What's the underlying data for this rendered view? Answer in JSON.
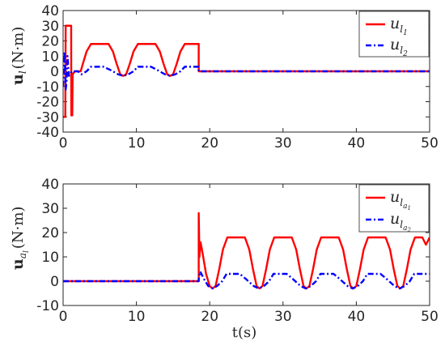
{
  "chart_data": [
    {
      "type": "line",
      "ylabel": {
        "symbol": "u",
        "sub": "l",
        "unit": "(N·m)"
      },
      "xlim": [
        0,
        50
      ],
      "ylim": [
        -40,
        40
      ],
      "xticks": [
        "0",
        "10",
        "20",
        "30",
        "40",
        "50"
      ],
      "yticks": [
        "-40",
        "-30",
        "-20",
        "-10",
        "0",
        "10",
        "20",
        "30",
        "40"
      ],
      "grid": false,
      "legend_placement": "top-right",
      "colors": {
        "series1": "#ff0000",
        "series2": "#0000ff"
      },
      "series": [
        {
          "name": "u_l1",
          "label": {
            "base": "u",
            "sub": "l",
            "subsub": "1"
          },
          "style": "solid",
          "points": [
            [
              0,
              -30
            ],
            [
              0.3,
              -30
            ],
            [
              0.35,
              30
            ],
            [
              1.1,
              30
            ],
            [
              1.12,
              -29
            ],
            [
              1.25,
              -29
            ],
            [
              1.3,
              -2
            ],
            [
              1.6,
              0
            ],
            [
              2.4,
              0
            ],
            [
              2.7,
              5
            ],
            [
              3.2,
              13
            ],
            [
              3.8,
              18
            ],
            [
              6.2,
              18
            ],
            [
              6.8,
              13
            ],
            [
              7.3,
              5
            ],
            [
              7.8,
              -2
            ],
            [
              8.2,
              -3
            ],
            [
              8.6,
              -2
            ],
            [
              9.1,
              5
            ],
            [
              9.6,
              13
            ],
            [
              10.2,
              18
            ],
            [
              12.6,
              18
            ],
            [
              13.2,
              13
            ],
            [
              13.7,
              5
            ],
            [
              14.2,
              -2
            ],
            [
              14.6,
              -3
            ],
            [
              15.0,
              -2
            ],
            [
              15.5,
              5
            ],
            [
              16.0,
              13
            ],
            [
              16.6,
              18
            ],
            [
              18.5,
              18
            ],
            [
              18.5,
              0
            ],
            [
              50,
              0
            ]
          ]
        },
        {
          "name": "u_l2",
          "label": {
            "base": "u",
            "sub": "l",
            "subsub": "2"
          },
          "style": "dashdot",
          "points": [
            [
              0,
              -10
            ],
            [
              0.2,
              13
            ],
            [
              0.35,
              -12
            ],
            [
              0.5,
              -5
            ],
            [
              0.6,
              10
            ],
            [
              0.8,
              -3
            ],
            [
              1.2,
              0
            ],
            [
              2.0,
              0
            ],
            [
              2.5,
              -2
            ],
            [
              3.2,
              0
            ],
            [
              3.8,
              3
            ],
            [
              5.5,
              3
            ],
            [
              6.4,
              1
            ],
            [
              7.5,
              -2
            ],
            [
              8.2,
              -3
            ],
            [
              8.9,
              -2
            ],
            [
              9.6,
              0
            ],
            [
              10.2,
              3
            ],
            [
              12.0,
              3
            ],
            [
              12.8,
              1
            ],
            [
              13.9,
              -2
            ],
            [
              14.6,
              -3
            ],
            [
              15.3,
              -2
            ],
            [
              16.0,
              0
            ],
            [
              16.6,
              3
            ],
            [
              18.0,
              3
            ],
            [
              18.5,
              3
            ],
            [
              18.5,
              0
            ],
            [
              50,
              0
            ]
          ]
        }
      ]
    },
    {
      "type": "line",
      "xlabel": "t(s)",
      "ylabel": {
        "symbol": "u",
        "sub": "a",
        "subsub": "l",
        "unit": "(N·m)"
      },
      "xlim": [
        0,
        50
      ],
      "ylim": [
        -10,
        40
      ],
      "xticks": [
        "0",
        "10",
        "20",
        "30",
        "40",
        "50"
      ],
      "yticks": [
        "-10",
        "0",
        "10",
        "20",
        "30",
        "40"
      ],
      "grid": false,
      "legend_placement": "top-right",
      "colors": {
        "series1": "#ff0000",
        "series2": "#0000ff"
      },
      "series": [
        {
          "name": "u_la1",
          "label": {
            "base": "u",
            "sub": "l",
            "subsub": "a",
            "subsubsub": "1"
          },
          "style": "solid",
          "points": [
            [
              0,
              0
            ],
            [
              18.5,
              0
            ],
            [
              18.5,
              28
            ],
            [
              18.6,
              10
            ],
            [
              18.75,
              16
            ],
            [
              19.0,
              12
            ],
            [
              19.5,
              3
            ],
            [
              20.0,
              -2
            ],
            [
              20.4,
              -3
            ],
            [
              20.8,
              -2
            ],
            [
              21.3,
              5
            ],
            [
              21.8,
              13
            ],
            [
              22.4,
              18
            ],
            [
              24.8,
              18
            ],
            [
              25.4,
              13
            ],
            [
              25.9,
              5
            ],
            [
              26.4,
              -2
            ],
            [
              26.8,
              -3
            ],
            [
              27.2,
              -2
            ],
            [
              27.7,
              5
            ],
            [
              28.2,
              13
            ],
            [
              28.8,
              18
            ],
            [
              31.2,
              18
            ],
            [
              31.8,
              13
            ],
            [
              32.3,
              5
            ],
            [
              32.8,
              -2
            ],
            [
              33.2,
              -3
            ],
            [
              33.6,
              -2
            ],
            [
              34.1,
              5
            ],
            [
              34.6,
              13
            ],
            [
              35.2,
              18
            ],
            [
              37.6,
              18
            ],
            [
              38.2,
              13
            ],
            [
              38.7,
              5
            ],
            [
              39.2,
              -2
            ],
            [
              39.6,
              -3
            ],
            [
              40.0,
              -2
            ],
            [
              40.5,
              5
            ],
            [
              41.0,
              13
            ],
            [
              41.6,
              18
            ],
            [
              44.0,
              18
            ],
            [
              44.6,
              13
            ],
            [
              45.1,
              5
            ],
            [
              45.6,
              -2
            ],
            [
              46.0,
              -3
            ],
            [
              46.4,
              -2
            ],
            [
              46.9,
              5
            ],
            [
              47.4,
              13
            ],
            [
              48.0,
              18
            ],
            [
              49.0,
              18
            ],
            [
              49.5,
              15
            ],
            [
              50,
              18
            ]
          ]
        },
        {
          "name": "u_la2",
          "label": {
            "base": "u",
            "sub": "l",
            "subsub": "a",
            "subsubsub": "2"
          },
          "style": "dashdot",
          "points": [
            [
              0,
              0
            ],
            [
              18.5,
              0
            ],
            [
              18.5,
              1
            ],
            [
              18.7,
              4
            ],
            [
              19.2,
              1
            ],
            [
              19.8,
              -2
            ],
            [
              20.4,
              -3
            ],
            [
              21.0,
              -2
            ],
            [
              21.7,
              0
            ],
            [
              22.3,
              3
            ],
            [
              24.1,
              3
            ],
            [
              24.9,
              1
            ],
            [
              26.0,
              -2
            ],
            [
              26.7,
              -3
            ],
            [
              27.4,
              -2
            ],
            [
              28.1,
              0
            ],
            [
              28.7,
              3
            ],
            [
              30.5,
              3
            ],
            [
              31.3,
              1
            ],
            [
              32.4,
              -2
            ],
            [
              33.1,
              -3
            ],
            [
              33.8,
              -2
            ],
            [
              34.5,
              0
            ],
            [
              35.1,
              3
            ],
            [
              36.9,
              3
            ],
            [
              37.7,
              1
            ],
            [
              38.8,
              -2
            ],
            [
              39.5,
              -3
            ],
            [
              40.2,
              -2
            ],
            [
              40.9,
              0
            ],
            [
              41.5,
              3
            ],
            [
              43.3,
              3
            ],
            [
              44.1,
              1
            ],
            [
              45.2,
              -2
            ],
            [
              45.9,
              -3
            ],
            [
              46.6,
              -2
            ],
            [
              47.3,
              0
            ],
            [
              47.9,
              3
            ],
            [
              49.3,
              3
            ],
            [
              50,
              3
            ]
          ]
        }
      ]
    }
  ]
}
